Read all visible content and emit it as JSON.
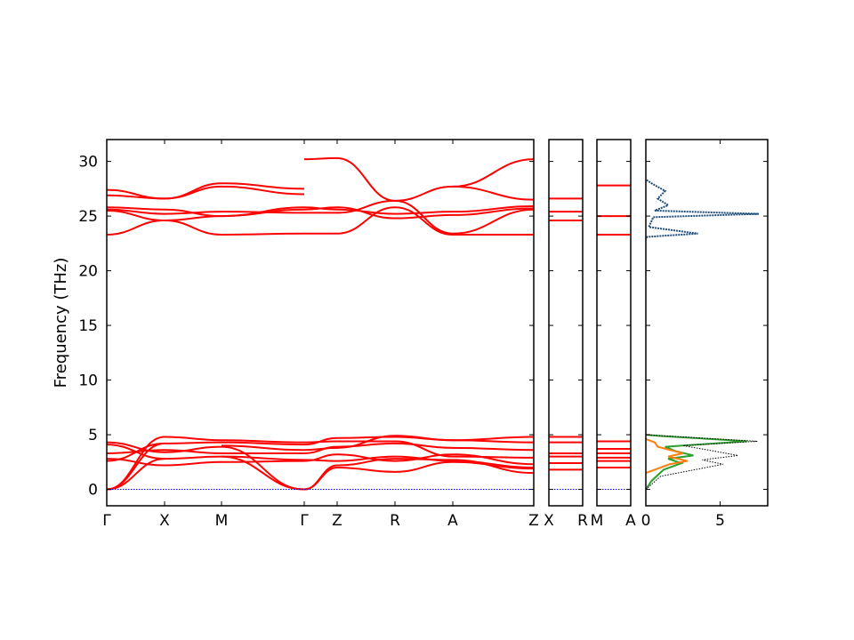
{
  "chart_data": {
    "type": "line",
    "ylabel": "Frequency (THz)",
    "ylim": [
      -1.5,
      32
    ],
    "y_ticks": [
      "0",
      "5",
      "10",
      "15",
      "20",
      "25",
      "30"
    ],
    "band_color": "#ff0000",
    "zero_line_color": "#0000ff",
    "panels": [
      {
        "id": "main",
        "segments": [
          {
            "from": "Γ",
            "to": "X",
            "branches": [
              [
                0,
                4.8
              ],
              [
                0,
                4.2
              ],
              [
                0,
                2.8
              ],
              [
                2.6,
                4.2
              ],
              [
                2.8,
                2.2
              ],
              [
                3.3,
                3.6
              ],
              [
                4.1,
                2.8
              ],
              [
                4.3,
                3.4
              ],
              [
                23.3,
                24.6
              ],
              [
                25.5,
                24.6
              ],
              [
                25.6,
                25.2
              ],
              [
                25.8,
                25.6
              ],
              [
                26.9,
                26.6
              ],
              [
                27.4,
                26.6
              ]
            ]
          },
          {
            "from": "X",
            "to": "M",
            "branches": [
              [
                4.8,
                4.5
              ],
              [
                4.2,
                4.3
              ],
              [
                3.4,
                3.9
              ],
              [
                2.8,
                3.0
              ],
              [
                2.2,
                2.5
              ],
              [
                3.6,
                3.3
              ],
              [
                24.6,
                23.3
              ],
              [
                24.6,
                25.0
              ],
              [
                25.2,
                25.4
              ],
              [
                25.6,
                25.0
              ],
              [
                26.6,
                28.0
              ],
              [
                26.6,
                27.7
              ]
            ]
          },
          {
            "from": "M",
            "to": "Γ",
            "branches": [
              [
                4.5,
                4.3
              ],
              [
                4.3,
                4.1
              ],
              [
                3.9,
                0
              ],
              [
                3.0,
                0
              ],
              [
                2.5,
                2.6
              ],
              [
                3.3,
                3.3
              ],
              [
                4.0,
                3.6
              ],
              [
                3.0,
                2.7
              ],
              [
                23.3,
                23.4
              ],
              [
                25.0,
                25.8
              ],
              [
                25.4,
                25.3
              ],
              [
                25.0,
                25.6
              ],
              [
                28.0,
                27.5
              ],
              [
                27.7,
                27.0
              ]
            ]
          },
          {
            "from": "Γ",
            "to": "Z",
            "branches": [
              [
                0,
                2.0
              ],
              [
                0,
                2.2
              ],
              [
                2.6,
                3.2
              ],
              [
                2.7,
                2.6
              ],
              [
                3.3,
                3.9
              ],
              [
                3.6,
                3.8
              ],
              [
                4.1,
                4.7
              ],
              [
                4.3,
                4.4
              ],
              [
                23.4,
                23.4
              ],
              [
                25.3,
                25.3
              ],
              [
                25.6,
                25.8
              ],
              [
                25.8,
                25.6
              ],
              [
                30.2,
                30.3
              ]
            ]
          },
          {
            "from": "Z",
            "to": "R",
            "branches": [
              [
                2.0,
                1.6
              ],
              [
                2.2,
                2.8
              ],
              [
                3.2,
                2.6
              ],
              [
                2.6,
                3.0
              ],
              [
                3.9,
                4.2
              ],
              [
                3.8,
                4.9
              ],
              [
                4.7,
                4.8
              ],
              [
                4.4,
                4.4
              ],
              [
                23.4,
                25.8
              ],
              [
                25.3,
                26.4
              ],
              [
                25.8,
                24.8
              ],
              [
                25.6,
                25.2
              ],
              [
                30.3,
                26.4
              ]
            ]
          },
          {
            "from": "R",
            "to": "A",
            "branches": [
              [
                1.6,
                2.5
              ],
              [
                2.8,
                2.7
              ],
              [
                2.6,
                3.2
              ],
              [
                3.0,
                2.6
              ],
              [
                4.2,
                3.8
              ],
              [
                4.9,
                4.5
              ],
              [
                4.8,
                4.5
              ],
              [
                4.4,
                3.0
              ],
              [
                25.8,
                23.3
              ],
              [
                26.4,
                27.7
              ],
              [
                24.8,
                25.1
              ],
              [
                25.2,
                25.4
              ],
              [
                26.4,
                23.4
              ]
            ]
          },
          {
            "from": "A",
            "to": "Z",
            "branches": [
              [
                2.5,
                1.9
              ],
              [
                2.7,
                1.5
              ],
              [
                3.2,
                2.3
              ],
              [
                2.6,
                2.0
              ],
              [
                3.8,
                3.6
              ],
              [
                4.5,
                4.8
              ],
              [
                4.5,
                4.3
              ],
              [
                3.0,
                2.9
              ],
              [
                23.3,
                23.3
              ],
              [
                27.7,
                26.5
              ],
              [
                25.1,
                25.7
              ],
              [
                25.4,
                25.9
              ],
              [
                23.4,
                25.6
              ],
              [
                27.7,
                30.2
              ]
            ]
          }
        ],
        "labels": [
          "Γ",
          "X",
          "M",
          "Γ",
          "Z",
          "R",
          "A",
          "Z"
        ]
      },
      {
        "id": "xr",
        "labels": [
          "X",
          "R"
        ],
        "flat_levels": [
          1.8,
          2.4,
          3.0,
          3.3,
          4.3,
          4.8,
          24.6,
          25.4,
          26.6
        ]
      },
      {
        "id": "ma",
        "labels": [
          "M",
          "A"
        ],
        "flat_levels": [
          2.0,
          2.6,
          2.9,
          3.3,
          3.7,
          4.4,
          23.3,
          25.0,
          27.8
        ]
      }
    ],
    "dos": {
      "x_ticks": [
        "0",
        "5"
      ],
      "xlim": [
        0,
        8.2
      ],
      "series": [
        {
          "color": "#1f4e79",
          "points": [
            [
              0.05,
              28.3
            ],
            [
              0.5,
              27.9
            ],
            [
              1.3,
              27.3
            ],
            [
              0.8,
              26.6
            ],
            [
              1.5,
              26.0
            ],
            [
              0.6,
              25.5
            ],
            [
              7.6,
              25.2
            ],
            [
              0.5,
              24.9
            ],
            [
              0.2,
              24.0
            ],
            [
              3.5,
              23.4
            ],
            [
              0.1,
              23.1
            ],
            [
              0.0,
              22.9
            ]
          ]
        },
        {
          "color": "#2ca02c",
          "points": [
            [
              0.0,
              0.0
            ],
            [
              0.4,
              0.8
            ],
            [
              1.2,
              1.8
            ],
            [
              2.4,
              2.4
            ],
            [
              1.5,
              2.8
            ],
            [
              3.2,
              3.1
            ],
            [
              2.0,
              3.5
            ],
            [
              1.3,
              3.9
            ],
            [
              6.8,
              4.4
            ],
            [
              0.8,
              4.9
            ],
            [
              0.0,
              5.0
            ]
          ]
        },
        {
          "color": "#ff7f0e",
          "points": [
            [
              0.0,
              1.5
            ],
            [
              1.6,
              2.3
            ],
            [
              2.8,
              2.6
            ],
            [
              1.5,
              3.0
            ],
            [
              2.5,
              3.3
            ],
            [
              0.8,
              3.9
            ],
            [
              0.6,
              4.3
            ],
            [
              0.0,
              4.6
            ]
          ]
        },
        {
          "color": "#000000",
          "points": [
            [
              0.0,
              0.0
            ],
            [
              1.0,
              1.2
            ],
            [
              5.2,
              2.3
            ],
            [
              3.8,
              2.7
            ],
            [
              6.2,
              3.1
            ],
            [
              4.2,
              3.6
            ],
            [
              2.5,
              4.0
            ],
            [
              7.5,
              4.4
            ],
            [
              1.2,
              4.9
            ],
            [
              0.0,
              5.0
            ]
          ]
        }
      ]
    }
  }
}
